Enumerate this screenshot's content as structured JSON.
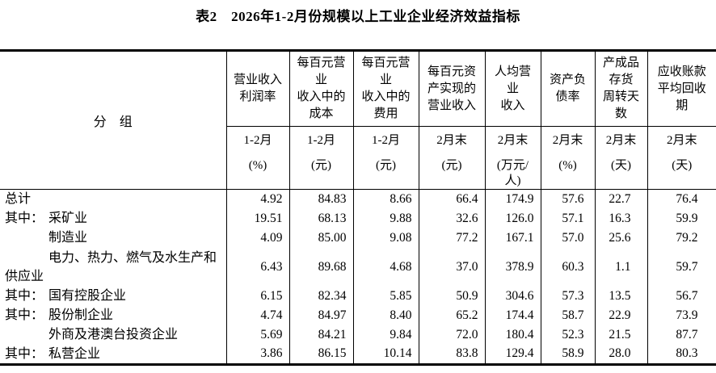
{
  "title": "表2　2026年1-2月份规模以上工业企业经济效益指标",
  "table": {
    "group_header": "分　组",
    "columns": [
      {
        "title": "营业收入\n利润率",
        "period": "1-2月",
        "unit": "(%)"
      },
      {
        "title": "每百元营\n业\n收入中的\n成本",
        "period": "1-2月",
        "unit": "(元)"
      },
      {
        "title": "每百元营\n业\n收入中的\n费用",
        "period": "1-2月",
        "unit": "(元)"
      },
      {
        "title": "每百元资\n产实现的\n营业收入",
        "period": "2月末",
        "unit": "(元)"
      },
      {
        "title": "人均营\n业\n收入",
        "period": "2月末",
        "unit": "(万元/\n人)"
      },
      {
        "title": "资产负\n债率",
        "period": "2月末",
        "unit": "(%)"
      },
      {
        "title": "产成品\n存货\n周转天\n数",
        "period": "2月末",
        "unit": "(天)"
      },
      {
        "title": "应收账款\n平均回收\n期",
        "period": "2月末",
        "unit": "(天)"
      }
    ],
    "rows": [
      {
        "prefix": "",
        "label": "总计",
        "sub_item": false,
        "values": [
          "4.92",
          "84.83",
          "8.66",
          "66.4",
          "174.9",
          "57.6",
          "22.7",
          "76.4"
        ]
      },
      {
        "prefix": "其中：",
        "label": "采矿业",
        "sub_item": false,
        "values": [
          "19.51",
          "68.13",
          "9.88",
          "32.6",
          "126.0",
          "57.1",
          "16.3",
          "59.9"
        ]
      },
      {
        "prefix": "",
        "label": "制造业",
        "sub_item": true,
        "values": [
          "4.09",
          "85.00",
          "9.08",
          "77.2",
          "167.1",
          "57.0",
          "25.6",
          "79.2"
        ]
      },
      {
        "prefix": "",
        "label": "电力、热力、燃气及水生产和",
        "label2": "供应业",
        "sub_item": true,
        "values": [
          "6.43",
          "89.68",
          "4.68",
          "37.0",
          "378.9",
          "60.3",
          "1.1",
          "59.7"
        ]
      },
      {
        "prefix": "其中：",
        "label": "国有控股企业",
        "sub_item": false,
        "values": [
          "6.15",
          "82.34",
          "5.85",
          "50.9",
          "304.6",
          "57.3",
          "13.5",
          "56.7"
        ]
      },
      {
        "prefix": "其中：",
        "label": "股份制企业",
        "sub_item": false,
        "values": [
          "4.74",
          "84.97",
          "8.40",
          "65.2",
          "174.4",
          "58.7",
          "22.9",
          "73.9"
        ]
      },
      {
        "prefix": "",
        "label": "外商及港澳台投资企业",
        "sub_item": true,
        "values": [
          "5.69",
          "84.21",
          "9.84",
          "72.0",
          "180.4",
          "52.3",
          "21.5",
          "87.7"
        ]
      },
      {
        "prefix": "其中：",
        "label": "私营企业",
        "sub_item": false,
        "values": [
          "3.86",
          "86.15",
          "10.14",
          "83.8",
          "129.4",
          "58.9",
          "28.0",
          "80.3"
        ]
      }
    ]
  }
}
